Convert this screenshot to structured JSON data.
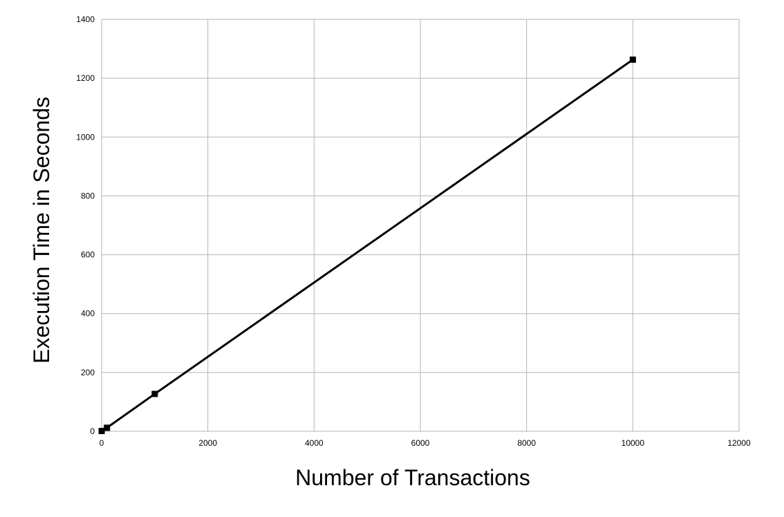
{
  "chart_data": {
    "type": "line",
    "title": "",
    "xlabel": "Number of Transactions",
    "ylabel": "Execution Time in Seconds",
    "xlim": [
      0,
      12000
    ],
    "ylim": [
      0,
      1400
    ],
    "xticks": [
      0,
      2000,
      4000,
      6000,
      8000,
      10000,
      12000
    ],
    "yticks": [
      0,
      200,
      400,
      600,
      800,
      1000,
      1200,
      1400
    ],
    "grid": true,
    "legend": "none",
    "series": [
      {
        "x": [
          1,
          100,
          1000,
          10000
        ],
        "y": [
          1,
          12,
          127,
          1263
        ],
        "marker": "square",
        "color": "#000000"
      }
    ]
  }
}
